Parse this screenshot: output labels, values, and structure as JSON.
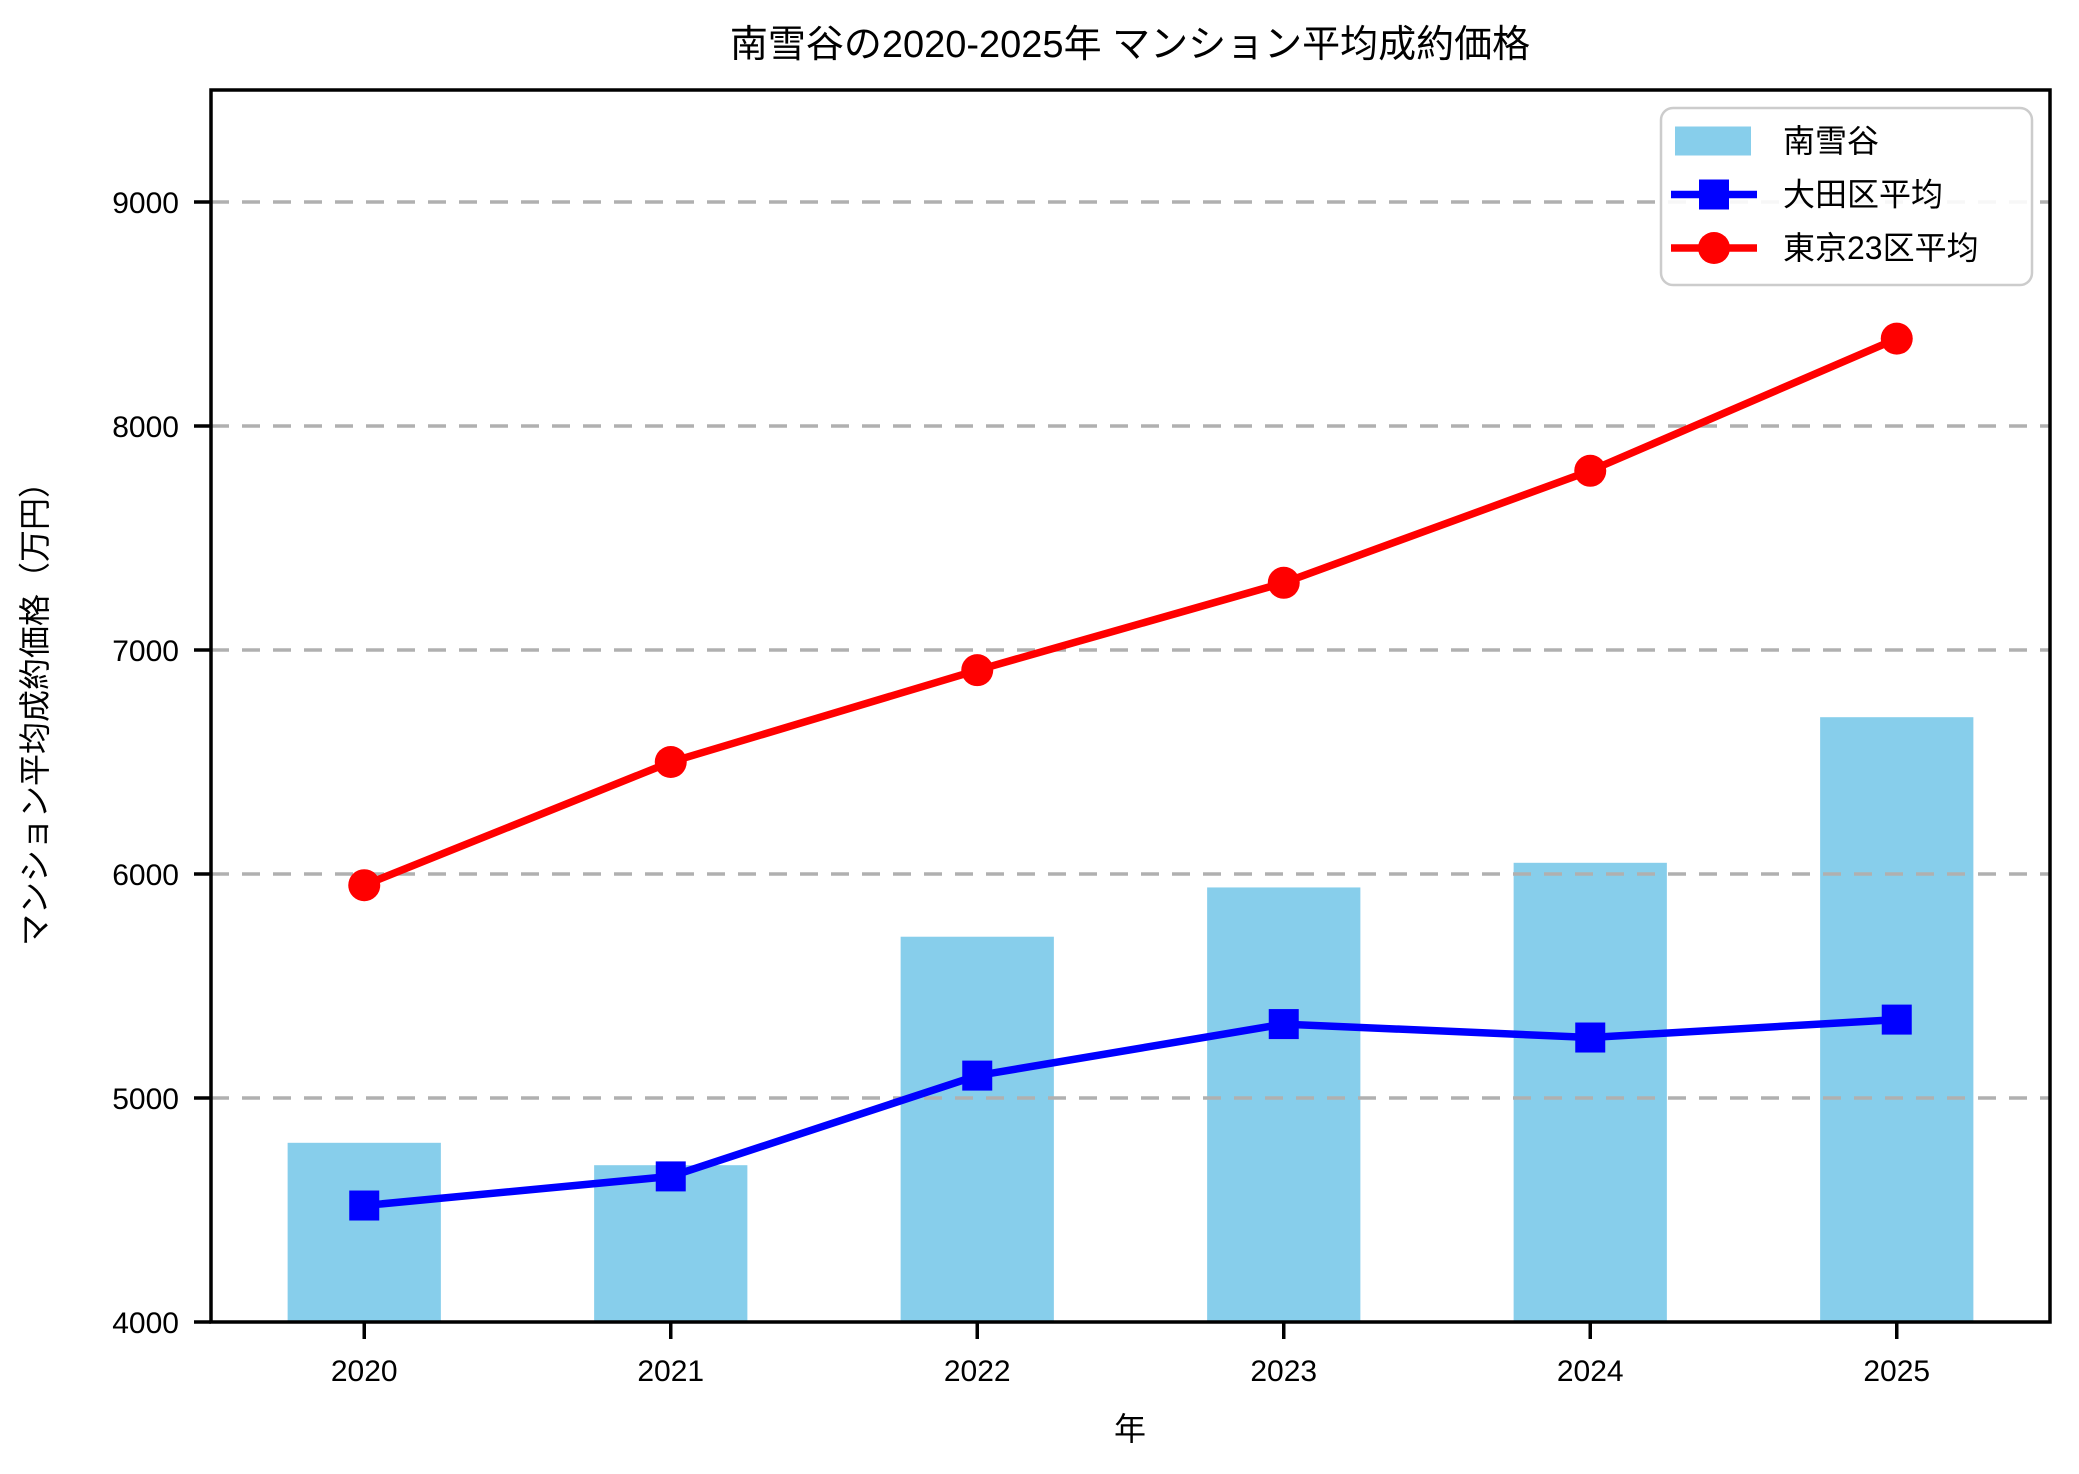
{
  "chart_data": {
    "type": "combo",
    "title": "南雪谷の2020-2025年 マンション平均成約価格",
    "xlabel": "年",
    "ylabel": "マンション平均成約価格（万円）",
    "categories": [
      "2020",
      "2021",
      "2022",
      "2023",
      "2024",
      "2025"
    ],
    "series": [
      {
        "name": "南雪谷",
        "slug": "minami-yukigaya",
        "type": "bar",
        "color": "#87CEEB",
        "values": [
          4800,
          4700,
          5720,
          5940,
          6050,
          6700
        ]
      },
      {
        "name": "大田区平均",
        "slug": "ota-ward-average",
        "type": "line",
        "marker": "square",
        "color": "#0000FF",
        "values": [
          4520,
          4650,
          5100,
          5330,
          5270,
          5350
        ]
      },
      {
        "name": "東京23区平均",
        "slug": "tokyo-23-wards-average",
        "type": "line",
        "marker": "circle",
        "color": "#FF0000",
        "values": [
          5950,
          6500,
          6910,
          7300,
          7800,
          8390
        ]
      }
    ],
    "ylim": [
      4000,
      9500
    ],
    "yticks": [
      4000,
      5000,
      6000,
      7000,
      8000,
      9000
    ],
    "grid": {
      "axis": "y",
      "style": "dashed",
      "color": "#b0b0b0"
    },
    "legend": {
      "position": "upper-right"
    },
    "axis_color": "#000000",
    "background_color": "#ffffff"
  }
}
